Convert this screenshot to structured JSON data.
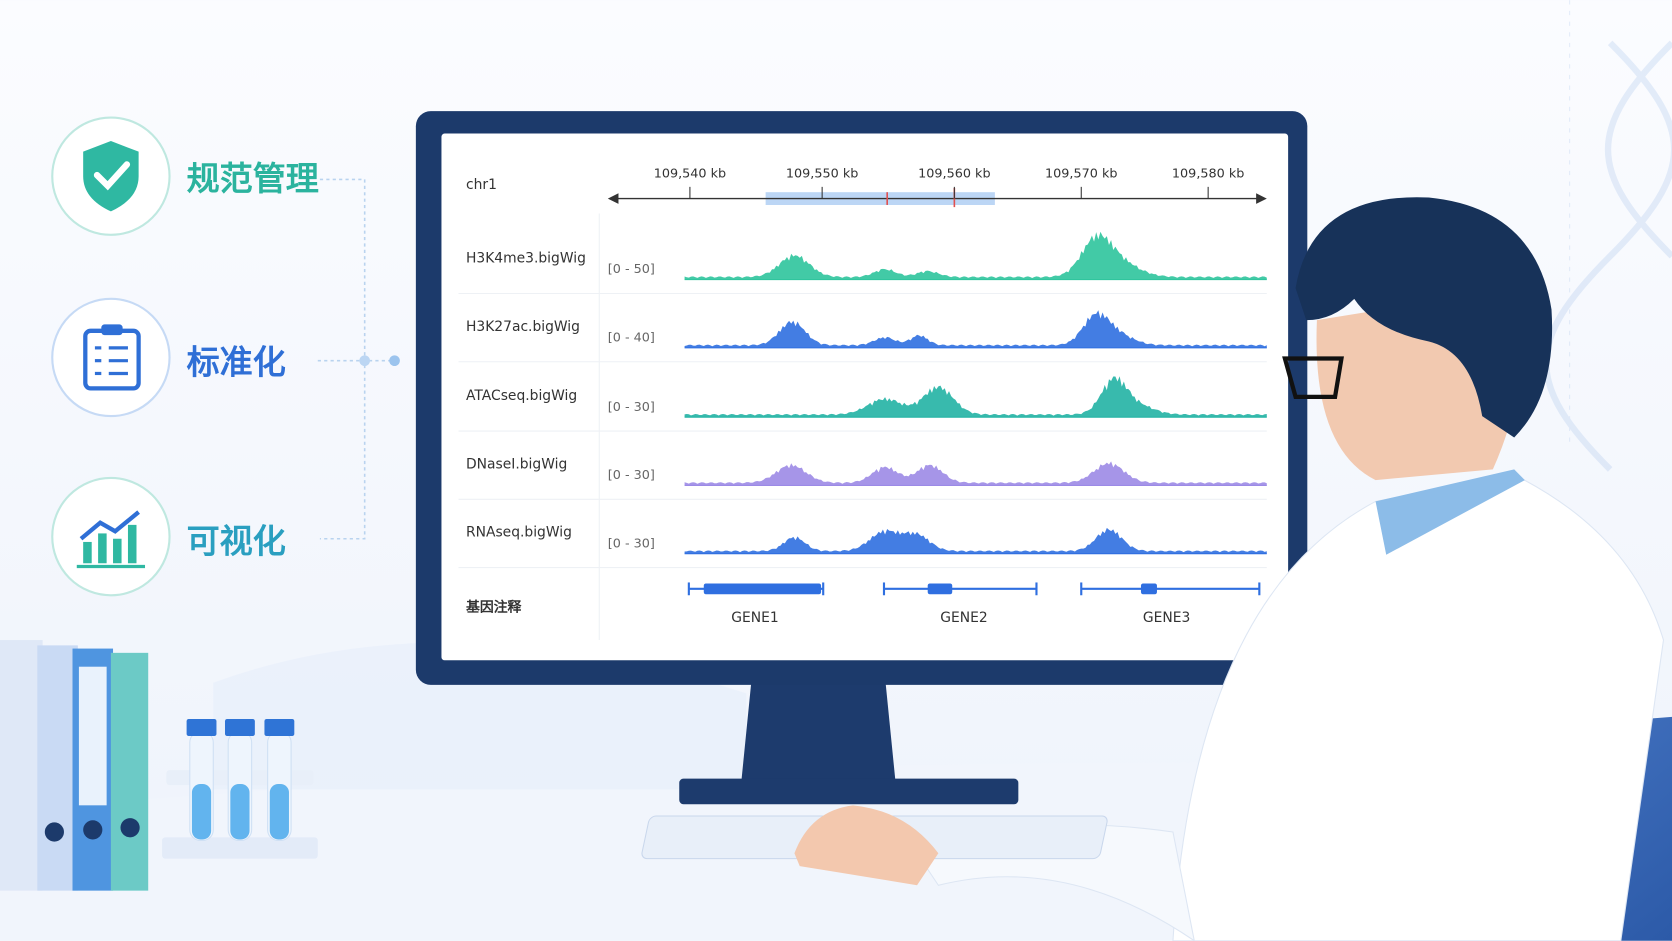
{
  "features": [
    {
      "label": "规范管理"
    },
    {
      "label": "标准化"
    },
    {
      "label": "可视化"
    }
  ],
  "browser": {
    "chromosome": "chr1",
    "ruler_ticks": [
      "109,540 kb",
      "109,550 kb",
      "109,560 kb",
      "109,570 kb",
      "109,580 kb"
    ],
    "tracks": [
      {
        "name": "H3K4me3.bigWig",
        "range": "[0 - 50]"
      },
      {
        "name": "H3K27ac.bigWig",
        "range": "[0 - 40]"
      },
      {
        "name": "ATACseq.bigWig",
        "range": "[0 - 30]"
      },
      {
        "name": "DNaseI.bigWig",
        "range": "[0 - 30]"
      },
      {
        "name": "RNAseq.bigWig",
        "range": "[0 - 30]"
      }
    ],
    "annotation": {
      "label": "基因注释",
      "genes": [
        "GENE1",
        "GENE2",
        "GENE3"
      ]
    }
  }
}
